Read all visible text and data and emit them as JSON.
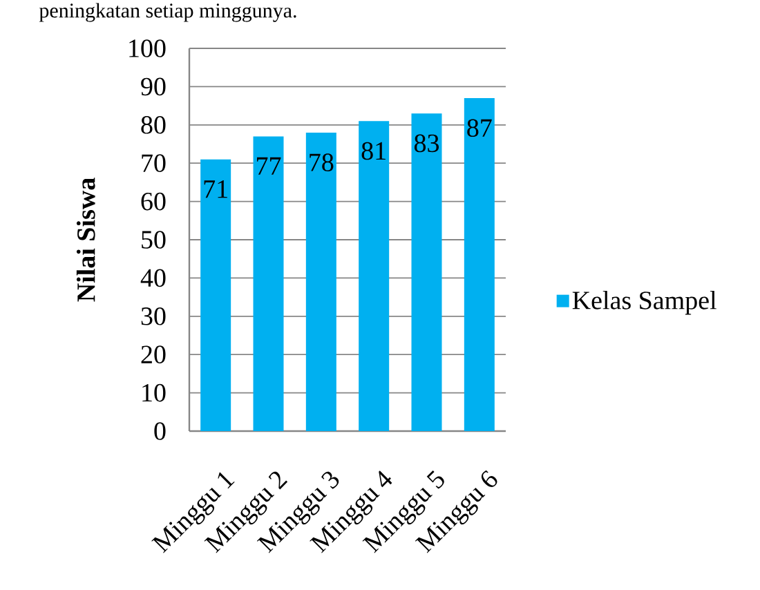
{
  "chart_data": {
    "type": "bar",
    "ylabel": "Nilai Siswa",
    "annotations": [
      "peningkatan setiap minggunya."
    ],
    "categories": [
      "Minggu 1",
      "Minggu 2",
      "Minggu 3",
      "Minggu 4",
      "Minggu 5",
      "Minggu 6"
    ],
    "series": [
      {
        "name": "Kelas Sampel",
        "color": "#00b0f0",
        "values": [
          71,
          77,
          78,
          81,
          83,
          87
        ]
      }
    ],
    "ylim": [
      0,
      100
    ],
    "yticks": [
      0,
      10,
      20,
      30,
      40,
      50,
      60,
      70,
      80,
      90,
      100
    ],
    "data_labels": true,
    "grid": "y",
    "legend": "right"
  }
}
